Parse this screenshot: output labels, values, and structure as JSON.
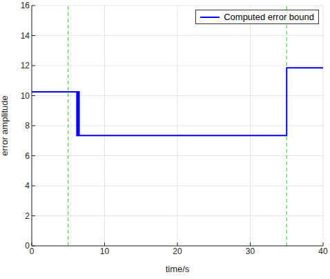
{
  "chart_data": {
    "type": "line",
    "x_label": "time/s",
    "y_label": "error amplitude",
    "xlim": [
      0,
      40
    ],
    "ylim": [
      0,
      16
    ],
    "xticks": [
      0,
      10,
      20,
      30,
      40
    ],
    "yticks": [
      0,
      2,
      4,
      6,
      8,
      10,
      12,
      14,
      16
    ],
    "grid": true,
    "legend": "upper right",
    "reference_lines": [
      5,
      35
    ],
    "series": [
      {
        "name": "Computed error bound",
        "color": "#0000ff",
        "x": [
          0,
          6.2,
          6.2,
          6.25,
          6.25,
          6.3,
          6.3,
          6.35,
          6.35,
          6.4,
          6.4,
          6.45,
          6.45,
          6.5,
          6.5,
          35,
          35,
          40
        ],
        "values": [
          10.25,
          10.25,
          7.35,
          7.35,
          10.25,
          10.25,
          7.35,
          7.35,
          10.25,
          10.25,
          7.35,
          7.35,
          10.25,
          10.25,
          7.35,
          7.35,
          11.85,
          11.85
        ]
      }
    ]
  }
}
